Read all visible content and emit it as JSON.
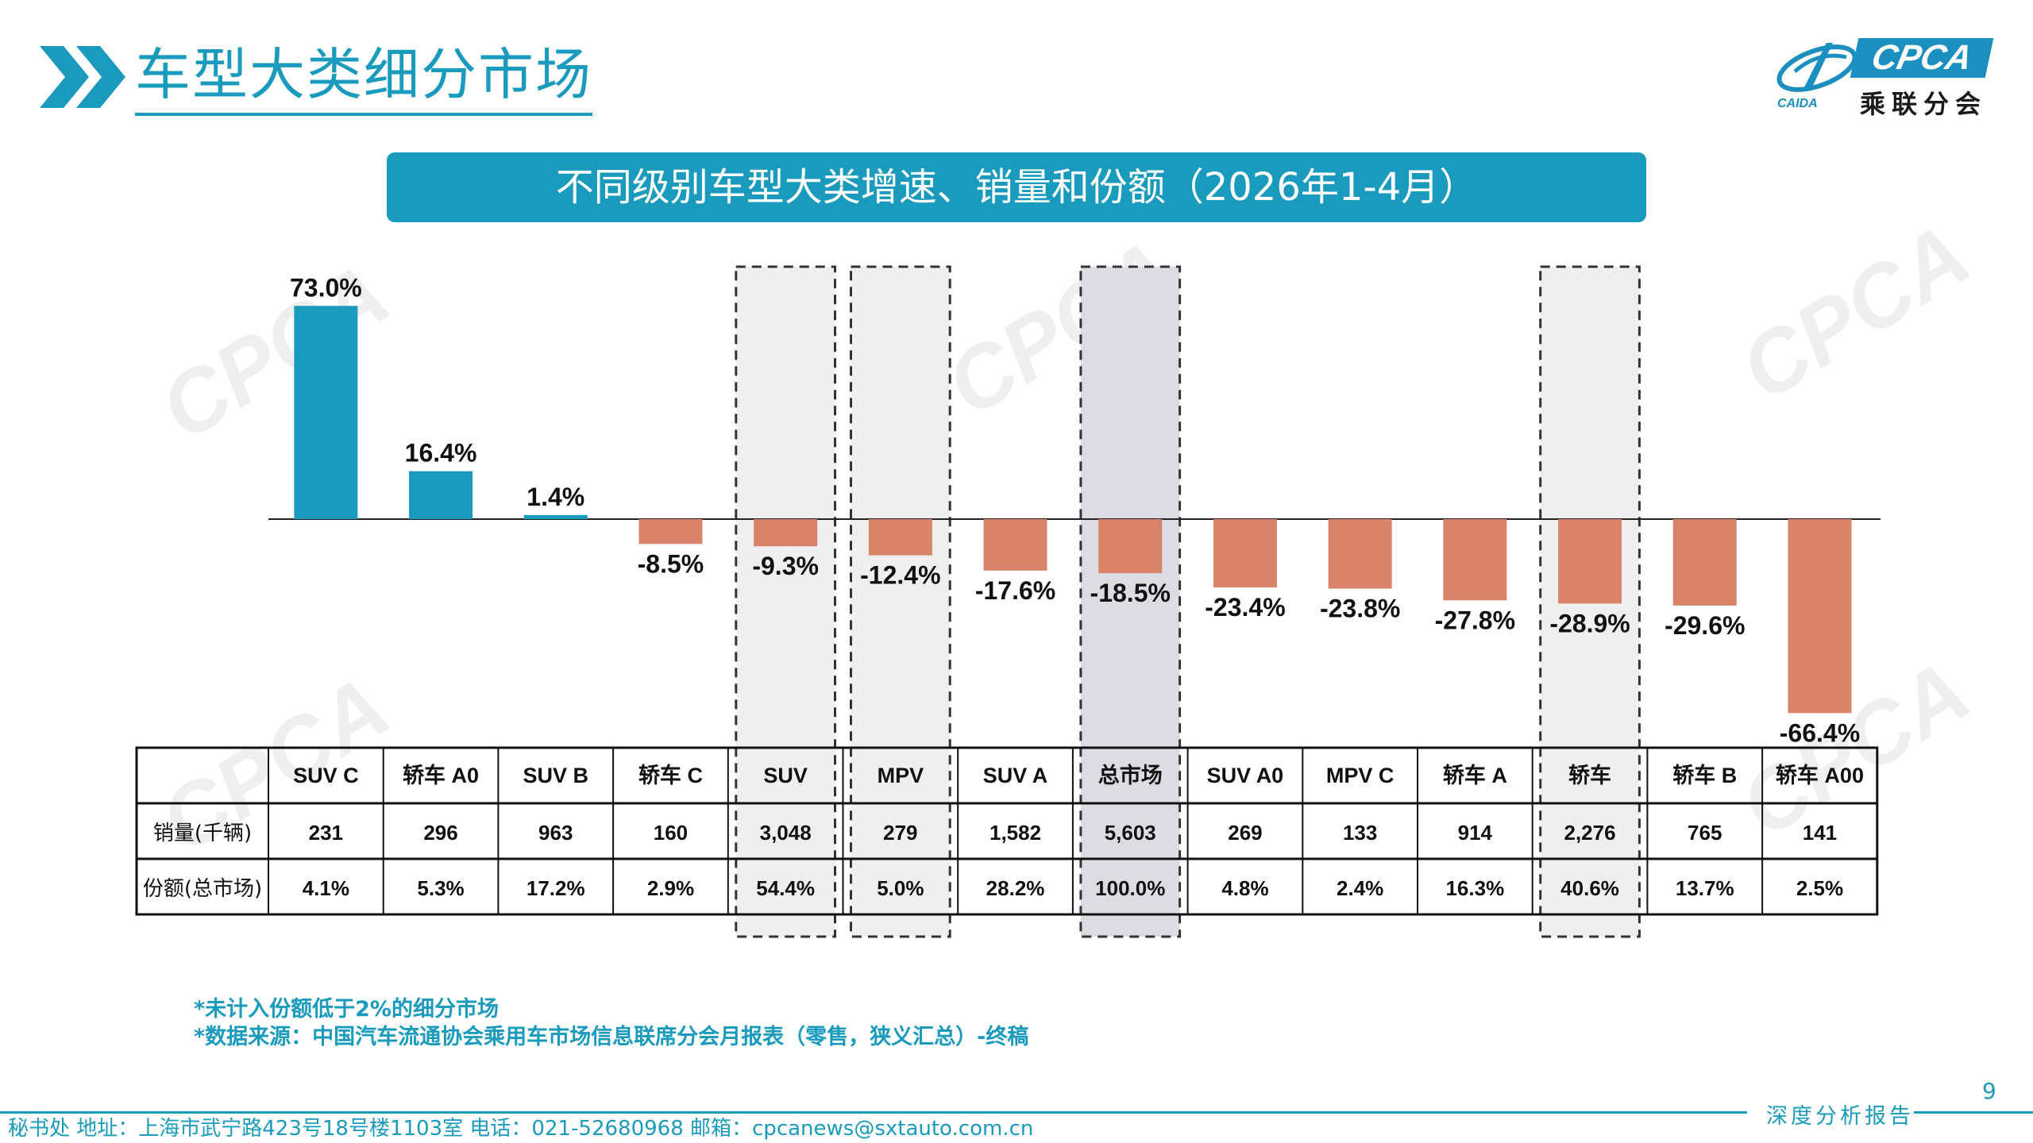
{
  "header": {
    "title": "车型大类细分市场",
    "logo_text": "CPCA",
    "logo_cn": "乘联分会",
    "logo_sub": "CAIDA"
  },
  "banner": "不同级别车型大类增速、销量和份额（2026年1-4月）",
  "colors": {
    "accent": "#1a9bbd",
    "positive": "#1a9bbd",
    "negative": "#d9846a",
    "highlight_bg": "#efefef",
    "total_bg": "#dcdce2"
  },
  "chart_data": {
    "type": "bar",
    "categories": [
      "SUV C",
      "轿车 A0",
      "SUV B",
      "轿车 C",
      "SUV",
      "MPV",
      "SUV A",
      "总市场",
      "SUV A0",
      "MPV C",
      "轿车 A",
      "轿车",
      "轿车 B",
      "轿车 A00"
    ],
    "values": [
      73.0,
      16.4,
      1.4,
      -8.5,
      -9.3,
      -12.4,
      -17.6,
      -18.5,
      -23.4,
      -23.8,
      -27.8,
      -28.9,
      -29.6,
      -66.4
    ],
    "value_labels": [
      "73.0%",
      "16.4%",
      "1.4%",
      "-8.5%",
      "-9.3%",
      "-12.4%",
      "-17.6%",
      "-18.5%",
      "-23.4%",
      "-23.8%",
      "-27.8%",
      "-28.9%",
      "-29.6%",
      "-66.4%"
    ],
    "unit": "%",
    "highlighted": [
      "SUV",
      "MPV",
      "轿车"
    ],
    "total": "总市场",
    "grid": false,
    "table": {
      "rows": [
        {
          "label": "销量(千辆)",
          "values": [
            "231",
            "296",
            "963",
            "160",
            "3,048",
            "279",
            "1,582",
            "5,603",
            "269",
            "133",
            "914",
            "2,276",
            "765",
            "141"
          ]
        },
        {
          "label": "份额(总市场)",
          "values": [
            "4.1%",
            "5.3%",
            "17.2%",
            "2.9%",
            "54.4%",
            "5.0%",
            "28.2%",
            "100.0%",
            "4.8%",
            "2.4%",
            "16.3%",
            "40.6%",
            "13.7%",
            "2.5%"
          ]
        }
      ]
    }
  },
  "notes": [
    "*未计入份额低于2%的细分市场",
    "*数据来源：中国汽车流通协会乘用车市场信息联席分会月报表（零售，狭义汇总）-终稿"
  ],
  "page_number": "9",
  "footer": {
    "tag": "深度分析报告",
    "contact": "秘书处   地址：上海市武宁路423号18号楼1103室   电话：021-52680968   邮箱：cpcanews@sxtauto.com.cn"
  }
}
